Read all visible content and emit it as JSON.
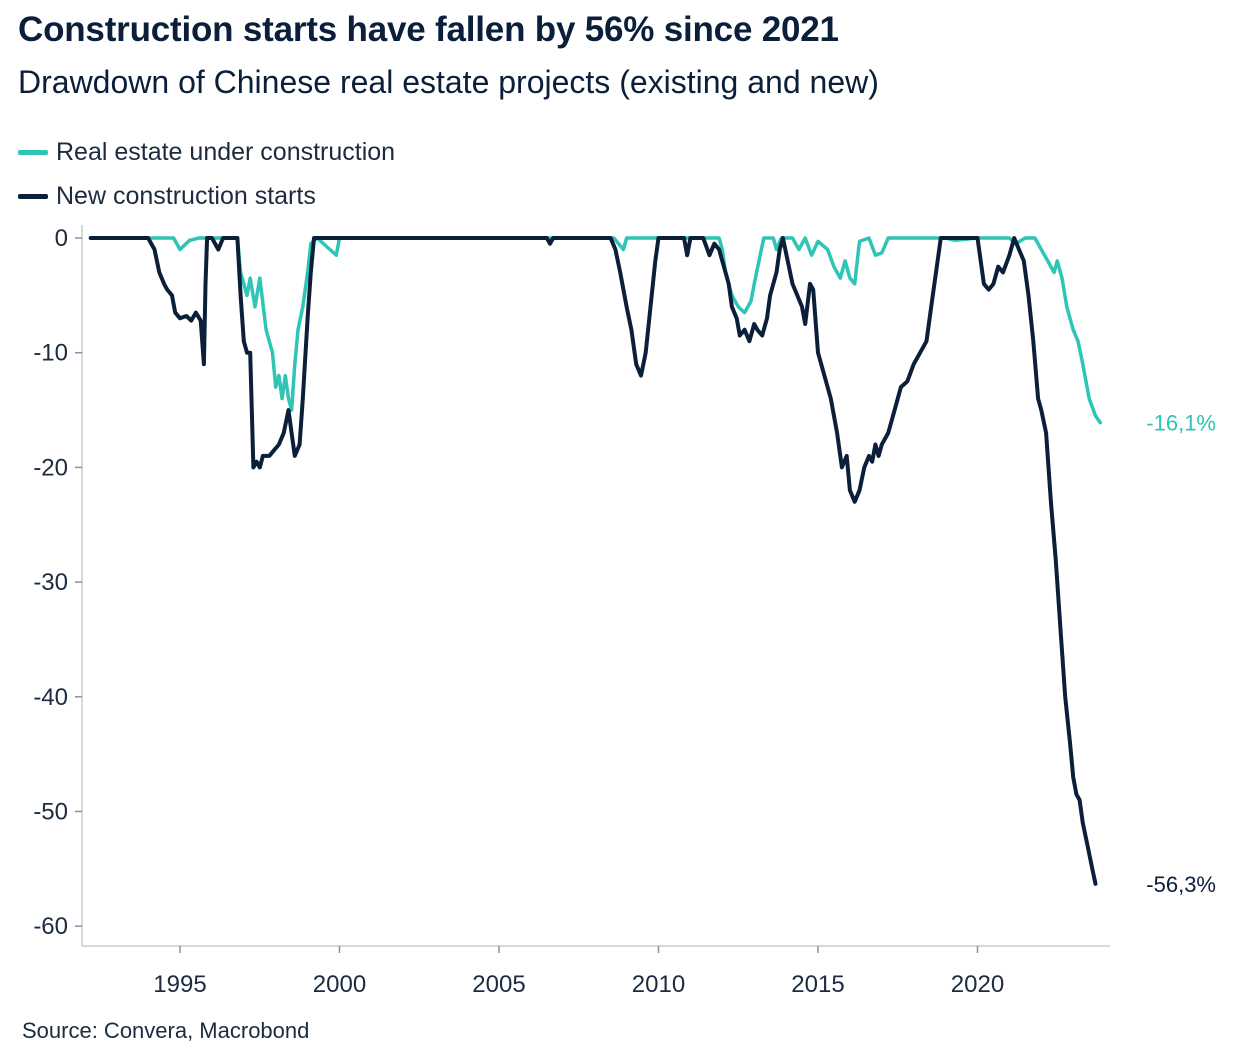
{
  "header": {
    "title": "Construction starts have fallen by 56% since 2021",
    "subtitle": "Drawdown of Chinese real estate projects (existing and new)"
  },
  "legend": {
    "items": [
      {
        "label": "Real estate under construction",
        "color": "#2ec4b6"
      },
      {
        "label": "New construction starts",
        "color": "#0b1f3a"
      }
    ]
  },
  "footer": {
    "source": "Source: Convera, Macrobond"
  },
  "chart_data": {
    "type": "line",
    "xlim": [
      1992.2,
      2024.2
    ],
    "ylim": [
      -62,
      1
    ],
    "x_ticks": [
      1995,
      2000,
      2005,
      2010,
      2015,
      2020
    ],
    "x_tick_labels": [
      "1995",
      "2000",
      "2005",
      "2010",
      "2015",
      "2020"
    ],
    "y_ticks": [
      0,
      -10,
      -20,
      -30,
      -40,
      -50,
      -60
    ],
    "y_tick_labels": [
      "0",
      "-10",
      "-20",
      "-30",
      "-40",
      "-50",
      "-60"
    ],
    "grid": false,
    "legend_position": "top-left",
    "series": [
      {
        "name": "Real estate under construction",
        "color": "#2ec4b6",
        "end_label": "-16,1%",
        "points": [
          [
            1992.2,
            0
          ],
          [
            1994.8,
            0
          ],
          [
            1995.0,
            -1
          ],
          [
            1995.3,
            -0.2
          ],
          [
            1995.6,
            0
          ],
          [
            1996.8,
            0
          ],
          [
            1996.9,
            -3
          ],
          [
            1997.1,
            -5
          ],
          [
            1997.2,
            -3.5
          ],
          [
            1997.35,
            -6
          ],
          [
            1997.5,
            -3.5
          ],
          [
            1997.7,
            -8
          ],
          [
            1997.9,
            -10
          ],
          [
            1998.0,
            -13
          ],
          [
            1998.1,
            -12
          ],
          [
            1998.2,
            -14
          ],
          [
            1998.3,
            -12
          ],
          [
            1998.4,
            -14
          ],
          [
            1998.5,
            -15
          ],
          [
            1998.6,
            -11
          ],
          [
            1998.7,
            -8
          ],
          [
            1998.85,
            -6
          ],
          [
            1999.0,
            -3
          ],
          [
            1999.1,
            -0.5
          ],
          [
            1999.3,
            0
          ],
          [
            1999.7,
            -1
          ],
          [
            1999.9,
            -1.5
          ],
          [
            2000.0,
            0
          ],
          [
            2008.6,
            0
          ],
          [
            2008.9,
            -1
          ],
          [
            2009.0,
            0
          ],
          [
            2011.9,
            0
          ],
          [
            2012.0,
            -1
          ],
          [
            2012.1,
            -3
          ],
          [
            2012.3,
            -5
          ],
          [
            2012.5,
            -6
          ],
          [
            2012.7,
            -6.5
          ],
          [
            2012.9,
            -5.5
          ],
          [
            2013.0,
            -4
          ],
          [
            2013.15,
            -2
          ],
          [
            2013.3,
            0
          ],
          [
            2013.6,
            0
          ],
          [
            2013.7,
            -1
          ],
          [
            2013.85,
            0
          ],
          [
            2014.2,
            0
          ],
          [
            2014.4,
            -1
          ],
          [
            2014.6,
            0
          ],
          [
            2014.8,
            -1.5
          ],
          [
            2015.0,
            -0.3
          ],
          [
            2015.3,
            -1
          ],
          [
            2015.5,
            -2.5
          ],
          [
            2015.7,
            -3.5
          ],
          [
            2015.85,
            -2
          ],
          [
            2016.0,
            -3.5
          ],
          [
            2016.15,
            -4
          ],
          [
            2016.3,
            -0.3
          ],
          [
            2016.6,
            0
          ],
          [
            2016.8,
            -1.5
          ],
          [
            2017.0,
            -1.3
          ],
          [
            2017.2,
            0
          ],
          [
            2019.0,
            0
          ],
          [
            2019.3,
            -0.2
          ],
          [
            2020.0,
            0
          ],
          [
            2021.0,
            0
          ],
          [
            2021.2,
            -0.5
          ],
          [
            2021.5,
            0
          ],
          [
            2021.8,
            0
          ],
          [
            2022.0,
            -1
          ],
          [
            2022.2,
            -2
          ],
          [
            2022.4,
            -3
          ],
          [
            2022.5,
            -2
          ],
          [
            2022.65,
            -3.5
          ],
          [
            2022.8,
            -6
          ],
          [
            2023.0,
            -8
          ],
          [
            2023.15,
            -9
          ],
          [
            2023.3,
            -11
          ],
          [
            2023.5,
            -14
          ],
          [
            2023.7,
            -15.5
          ],
          [
            2023.85,
            -16.1
          ]
        ]
      },
      {
        "name": "New construction starts",
        "color": "#0b1f3a",
        "end_label": "-56,3%",
        "points": [
          [
            1992.2,
            0
          ],
          [
            1994.0,
            0
          ],
          [
            1994.2,
            -1
          ],
          [
            1994.35,
            -3
          ],
          [
            1994.5,
            -4
          ],
          [
            1994.6,
            -4.5
          ],
          [
            1994.75,
            -5
          ],
          [
            1994.85,
            -6.5
          ],
          [
            1995.0,
            -7
          ],
          [
            1995.2,
            -6.8
          ],
          [
            1995.35,
            -7.2
          ],
          [
            1995.5,
            -6.5
          ],
          [
            1995.65,
            -7.2
          ],
          [
            1995.75,
            -11
          ],
          [
            1995.8,
            -4
          ],
          [
            1995.85,
            0
          ],
          [
            1996.0,
            0
          ],
          [
            1996.2,
            -1
          ],
          [
            1996.35,
            0
          ],
          [
            1996.8,
            0
          ],
          [
            1996.9,
            -5
          ],
          [
            1997.0,
            -9
          ],
          [
            1997.1,
            -10
          ],
          [
            1997.2,
            -10
          ],
          [
            1997.3,
            -20
          ],
          [
            1997.4,
            -19.5
          ],
          [
            1997.5,
            -20
          ],
          [
            1997.6,
            -19
          ],
          [
            1997.8,
            -19
          ],
          [
            1997.95,
            -18.5
          ],
          [
            1998.1,
            -18
          ],
          [
            1998.25,
            -17
          ],
          [
            1998.4,
            -15
          ],
          [
            1998.5,
            -17
          ],
          [
            1998.6,
            -19
          ],
          [
            1998.75,
            -18
          ],
          [
            1998.85,
            -14
          ],
          [
            1999.0,
            -7
          ],
          [
            1999.1,
            -3
          ],
          [
            1999.2,
            0
          ],
          [
            2006.5,
            0
          ],
          [
            2006.6,
            -0.5
          ],
          [
            2006.7,
            0
          ],
          [
            2008.5,
            0
          ],
          [
            2008.65,
            -1
          ],
          [
            2008.8,
            -3
          ],
          [
            2009.0,
            -6
          ],
          [
            2009.15,
            -8
          ],
          [
            2009.3,
            -11
          ],
          [
            2009.45,
            -12
          ],
          [
            2009.6,
            -10
          ],
          [
            2009.75,
            -6
          ],
          [
            2009.9,
            -2
          ],
          [
            2010.0,
            0
          ],
          [
            2010.8,
            0
          ],
          [
            2010.9,
            -1.5
          ],
          [
            2011.0,
            0
          ],
          [
            2011.4,
            0
          ],
          [
            2011.6,
            -1.5
          ],
          [
            2011.75,
            -0.5
          ],
          [
            2011.9,
            -1
          ],
          [
            2012.0,
            -2
          ],
          [
            2012.1,
            -3
          ],
          [
            2012.2,
            -4
          ],
          [
            2012.3,
            -6
          ],
          [
            2012.45,
            -7
          ],
          [
            2012.55,
            -8.5
          ],
          [
            2012.7,
            -8
          ],
          [
            2012.85,
            -9
          ],
          [
            2013.0,
            -7.5
          ],
          [
            2013.1,
            -8
          ],
          [
            2013.25,
            -8.5
          ],
          [
            2013.4,
            -7
          ],
          [
            2013.5,
            -5
          ],
          [
            2013.6,
            -4
          ],
          [
            2013.7,
            -3
          ],
          [
            2013.8,
            -1
          ],
          [
            2013.9,
            0
          ],
          [
            2014.05,
            -2
          ],
          [
            2014.2,
            -4
          ],
          [
            2014.35,
            -5
          ],
          [
            2014.5,
            -6
          ],
          [
            2014.6,
            -7.5
          ],
          [
            2014.75,
            -4
          ],
          [
            2014.85,
            -4.5
          ],
          [
            2015.0,
            -10
          ],
          [
            2015.2,
            -12
          ],
          [
            2015.4,
            -14
          ],
          [
            2015.6,
            -17
          ],
          [
            2015.75,
            -20
          ],
          [
            2015.9,
            -19
          ],
          [
            2016.0,
            -22
          ],
          [
            2016.15,
            -23
          ],
          [
            2016.3,
            -22
          ],
          [
            2016.45,
            -20
          ],
          [
            2016.6,
            -19
          ],
          [
            2016.7,
            -19.5
          ],
          [
            2016.8,
            -18
          ],
          [
            2016.9,
            -19
          ],
          [
            2017.0,
            -18
          ],
          [
            2017.2,
            -17
          ],
          [
            2017.4,
            -15
          ],
          [
            2017.6,
            -13
          ],
          [
            2017.8,
            -12.5
          ],
          [
            2018.0,
            -11
          ],
          [
            2018.2,
            -10
          ],
          [
            2018.4,
            -9
          ],
          [
            2018.55,
            -6
          ],
          [
            2018.7,
            -3
          ],
          [
            2018.85,
            0
          ],
          [
            2020.0,
            0
          ],
          [
            2020.1,
            -2
          ],
          [
            2020.2,
            -4
          ],
          [
            2020.35,
            -4.5
          ],
          [
            2020.5,
            -4
          ],
          [
            2020.65,
            -2.5
          ],
          [
            2020.8,
            -3
          ],
          [
            2021.0,
            -1.5
          ],
          [
            2021.15,
            0
          ],
          [
            2021.3,
            -1
          ],
          [
            2021.45,
            -2
          ],
          [
            2021.6,
            -5
          ],
          [
            2021.75,
            -9
          ],
          [
            2021.9,
            -14
          ],
          [
            2022.0,
            -15
          ],
          [
            2022.15,
            -17
          ],
          [
            2022.3,
            -23
          ],
          [
            2022.45,
            -28
          ],
          [
            2022.6,
            -34
          ],
          [
            2022.75,
            -40
          ],
          [
            2022.9,
            -44
          ],
          [
            2023.0,
            -47
          ],
          [
            2023.1,
            -48.5
          ],
          [
            2023.2,
            -49
          ],
          [
            2023.3,
            -51
          ],
          [
            2023.45,
            -53
          ],
          [
            2023.6,
            -55
          ],
          [
            2023.7,
            -56.3
          ]
        ]
      }
    ]
  }
}
